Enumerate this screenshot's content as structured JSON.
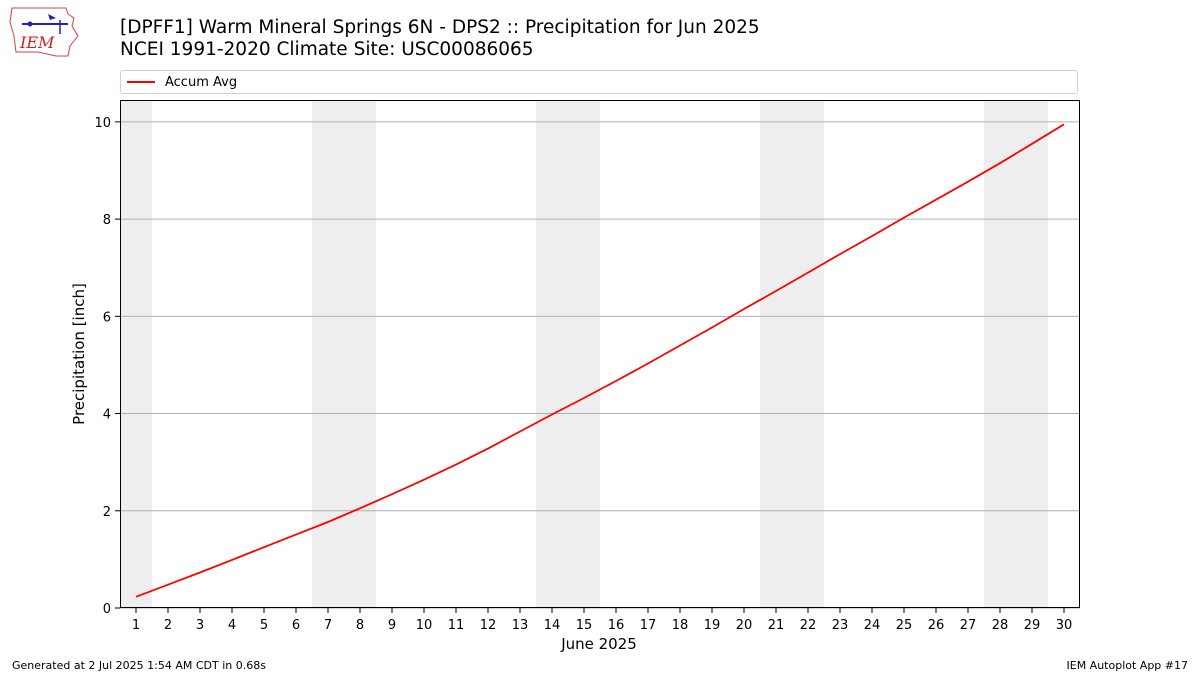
{
  "header": {
    "title_line1": "[DPFF1] Warm Mineral Springs 6N - DPS2 :: Precipitation for Jun 2025",
    "title_line2": "NCEI 1991-2020 Climate Site: USC00086065"
  },
  "logo": {
    "text": "IEM"
  },
  "footer": {
    "generated": "Generated at 2 Jul 2025 1:54 AM CDT in 0.68s",
    "app": "IEM Autoplot App #17"
  },
  "colors": {
    "line": "#ff0000",
    "weekend_band": "#eeeeee",
    "grid": "#b0b0b0"
  },
  "chart_data": {
    "type": "line",
    "title": "[DPFF1] Warm Mineral Springs 6N - DPS2 :: Precipitation for Jun 2025",
    "xlabel": "June 2025",
    "ylabel": "Precipitation [inch]",
    "xlim": [
      0.5,
      30.5
    ],
    "ylim": [
      0,
      10.45
    ],
    "yticks": [
      0,
      2,
      4,
      6,
      8,
      10
    ],
    "grid": "y",
    "legend_placement": "top",
    "weekend_days": [
      1,
      7,
      8,
      14,
      15,
      21,
      22,
      28,
      29
    ],
    "x": [
      1,
      2,
      3,
      4,
      5,
      6,
      7,
      8,
      9,
      10,
      11,
      12,
      13,
      14,
      15,
      16,
      17,
      18,
      19,
      20,
      21,
      22,
      23,
      24,
      25,
      26,
      27,
      28,
      29,
      30
    ],
    "series": [
      {
        "name": "Accum Avg",
        "values": [
          0.23,
          0.48,
          0.73,
          0.99,
          1.25,
          1.51,
          1.77,
          2.05,
          2.34,
          2.64,
          2.95,
          3.28,
          3.63,
          3.98,
          4.32,
          4.67,
          5.03,
          5.4,
          5.77,
          6.15,
          6.52,
          6.9,
          7.28,
          7.65,
          8.03,
          8.4,
          8.77,
          9.15,
          9.55,
          9.95
        ]
      }
    ]
  }
}
